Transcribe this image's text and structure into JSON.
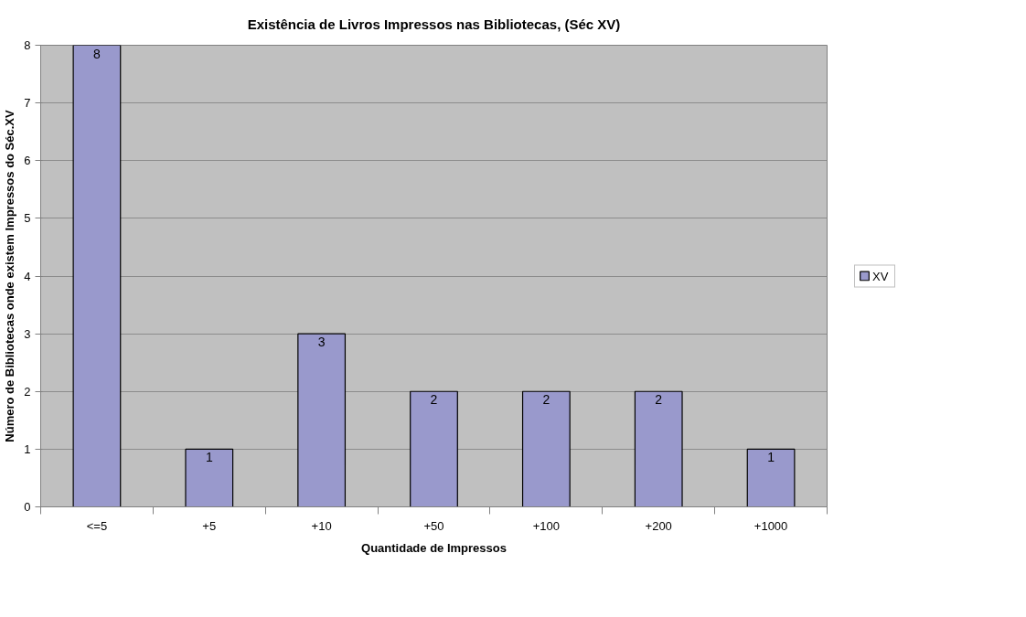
{
  "chart_data": {
    "type": "bar",
    "title": "Existência de Livros Impressos nas Bibliotecas, (Séc XV)",
    "xlabel": "Quantidade de Impressos",
    "ylabel": "Número de Bibliotecas onde existem Impressos do Séc.XV",
    "categories": [
      "<=5",
      "+5",
      "+10",
      "+50",
      "+100",
      "+200",
      "+1000"
    ],
    "series": [
      {
        "name": "XV",
        "color": "#9999cc",
        "values": [
          8,
          1,
          3,
          2,
          2,
          2,
          1
        ]
      }
    ],
    "ylim": [
      0,
      8
    ],
    "yticks": [
      0,
      1,
      2,
      3,
      4,
      5,
      6,
      7,
      8
    ],
    "grid": "y",
    "legend": "right",
    "data_labels": true
  }
}
